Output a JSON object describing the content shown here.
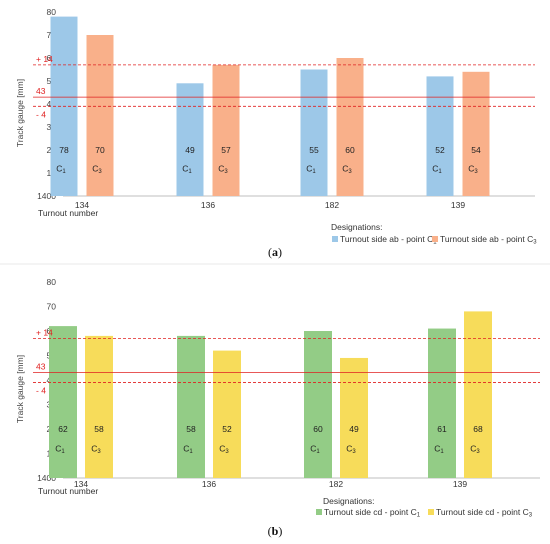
{
  "chart_data": [
    {
      "id": "a",
      "type": "bar",
      "caption_open": "(",
      "caption_letter": "a",
      "caption_close": ")",
      "ylabel": "Track gauge [mm]",
      "xlabel": "Turnout number",
      "y_ticks": [
        "1400",
        "10",
        "20",
        "30",
        "40",
        "50",
        "60",
        "70",
        "80"
      ],
      "ylim": [
        0,
        80
      ],
      "categories": [
        "134",
        "136",
        "182",
        "139"
      ],
      "series": [
        {
          "name": "Turnout side ab - point C1",
          "short": "C1",
          "color": "#9dc8e8",
          "values": [
            78,
            49,
            55,
            52
          ]
        },
        {
          "name": "Turnout side ab - point C3",
          "short": "C3",
          "color": "#f9b08a",
          "values": [
            70,
            57,
            60,
            54
          ]
        }
      ],
      "reference_lines": [
        {
          "label": "+ 14",
          "value": 57,
          "style": "dashed"
        },
        {
          "label": "43",
          "value": 43,
          "style": "solid"
        },
        {
          "label": "- 4",
          "value": 39,
          "style": "dashed"
        }
      ],
      "legend_title": "Designations:",
      "legend_position": "bottom-right",
      "grid": false
    },
    {
      "id": "b",
      "type": "bar",
      "caption_open": "(",
      "caption_letter": "b",
      "caption_close": ")",
      "ylabel": "Track gauge [mm]",
      "xlabel": "Turnout number",
      "y_ticks": [
        "1400",
        "10",
        "20",
        "30",
        "40",
        "50",
        "60",
        "70",
        "80"
      ],
      "ylim": [
        0,
        80
      ],
      "categories": [
        "134",
        "136",
        "182",
        "139"
      ],
      "series": [
        {
          "name": "Turnout side cd - point C1",
          "short": "C1",
          "color": "#93cc86",
          "values": [
            62,
            58,
            60,
            61
          ]
        },
        {
          "name": "Turnout side cd - point C3",
          "short": "C3",
          "color": "#f7dc5a",
          "values": [
            58,
            52,
            49,
            68
          ]
        }
      ],
      "reference_lines": [
        {
          "label": "+ 14",
          "value": 57,
          "style": "dashed"
        },
        {
          "label": "43",
          "value": 43,
          "style": "solid"
        },
        {
          "label": "- 4",
          "value": 39,
          "style": "dashed"
        }
      ],
      "legend_title": "Designations:",
      "legend_position": "bottom-right",
      "grid": false
    }
  ],
  "colors": {
    "reference": "#e02020",
    "axis": "#bfbfbf"
  }
}
